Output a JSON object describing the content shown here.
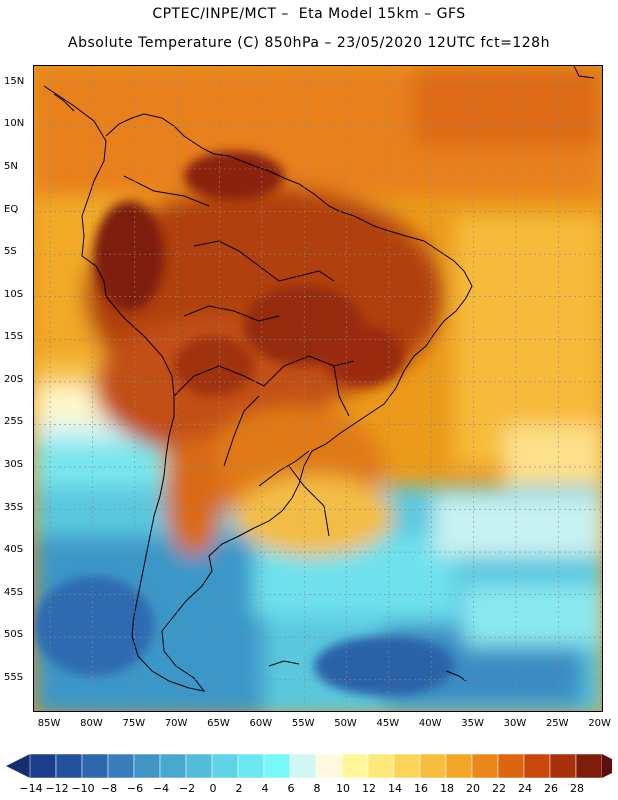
{
  "header": {
    "line1": "CPTEC/INPE/MCT –  Eta Model 15km – GFS",
    "line2": "Absolute Temperature (C) 850hPa – 23/05/2020 12UTC fct=128h"
  },
  "map": {
    "lat_labels": [
      "15N",
      "10N",
      "5N",
      "EQ",
      "5S",
      "10S",
      "15S",
      "20S",
      "25S",
      "30S",
      "35S",
      "40S",
      "45S",
      "50S",
      "55S"
    ],
    "lon_labels": [
      "85W",
      "80W",
      "75W",
      "70W",
      "65W",
      "60W",
      "55W",
      "50W",
      "45W",
      "40W",
      "35W",
      "30W",
      "25W",
      "20W"
    ],
    "lat_values": [
      15,
      10,
      5,
      0,
      -5,
      -10,
      -15,
      -20,
      -25,
      -30,
      -35,
      -40,
      -45,
      -50,
      -55
    ],
    "lon_values": [
      -85,
      -80,
      -75,
      -70,
      -65,
      -60,
      -55,
      -50,
      -45,
      -40,
      -35,
      -30,
      -25,
      -20
    ],
    "grid": "dotted"
  },
  "colorbar": {
    "labels": [
      "-14",
      "-12",
      "-10",
      "-8",
      "-6",
      "-4",
      "-2",
      "0",
      "2",
      "4",
      "6",
      "8",
      "10",
      "12",
      "14",
      "16",
      "18",
      "20",
      "22",
      "24",
      "26",
      "28"
    ],
    "colors": [
      "#1a3e8c",
      "#22509c",
      "#2e67ad",
      "#3a7dbc",
      "#4294c4",
      "#49a8d0",
      "#52bdd9",
      "#5ed4e6",
      "#6be8f2",
      "#78f8f8",
      "#d0f6f6",
      "#fffadf",
      "#fff79a",
      "#ffe87a",
      "#fcd45a",
      "#f7be3e",
      "#f2a527",
      "#eb861a",
      "#dd6510",
      "#c9470c",
      "#a8300a",
      "#7e1d0a"
    ],
    "low_arrow_color": "#142e6e",
    "high_arrow_color": "#5a0f12"
  }
}
